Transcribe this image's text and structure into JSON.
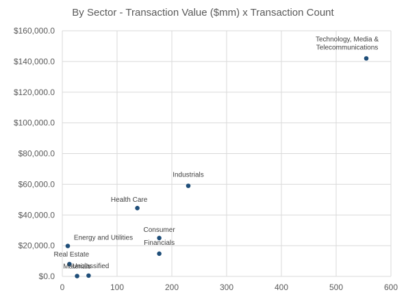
{
  "chart_data": {
    "type": "scatter",
    "title": "By Sector - Transaction Value ($mm) x Transaction Count",
    "xlabel": "",
    "ylabel": "",
    "xlim": [
      0,
      600
    ],
    "ylim": [
      0,
      160000
    ],
    "x_ticks": [
      0,
      100,
      200,
      300,
      400,
      500,
      600
    ],
    "y_ticks": [
      0,
      20000,
      40000,
      60000,
      80000,
      100000,
      120000,
      140000,
      160000
    ],
    "x_tick_labels": [
      "0",
      "100",
      "200",
      "300",
      "400",
      "500",
      "600"
    ],
    "y_tick_labels": [
      "$0.0",
      "$20,000.0",
      "$40,000.0",
      "$60,000.0",
      "$80,000.0",
      "$100,000.0",
      "$120,000.0",
      "$140,000.0",
      "$160,000.0"
    ],
    "grid": true,
    "legend": "none",
    "marker_color": "#1f4e79",
    "points": [
      {
        "label": "Technology, Media & Telecommunications",
        "label_lines": [
          "Technology, Media &",
          "Telecommunications"
        ],
        "x": 555,
        "y": 142000
      },
      {
        "label": "Industrials",
        "label_lines": [
          "Industrials"
        ],
        "x": 230,
        "y": 59000
      },
      {
        "label": "Health Care",
        "label_lines": [
          "Health Care"
        ],
        "x": 137,
        "y": 44500
      },
      {
        "label": "Consumer",
        "label_lines": [
          "Consumer"
        ],
        "x": 177,
        "y": 25000
      },
      {
        "label": "Financials",
        "label_lines": [
          "Financials"
        ],
        "x": 177,
        "y": 14800
      },
      {
        "label": "Energy and Utilities",
        "label_lines": [
          "Energy and Utilities"
        ],
        "x": 10,
        "y": 19800
      },
      {
        "label": "Real Estate",
        "label_lines": [
          "Real Estate"
        ],
        "x": 13,
        "y": 8000
      },
      {
        "label": "Unclassified",
        "label_lines": [
          "Unclassified"
        ],
        "x": 48,
        "y": 500
      },
      {
        "label": "Materials",
        "label_lines": [
          "Materials"
        ],
        "x": 27,
        "y": 200
      }
    ]
  }
}
